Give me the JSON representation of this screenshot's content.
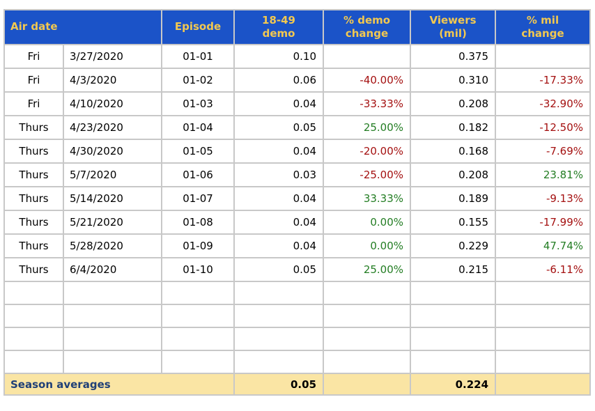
{
  "colors": {
    "header_bg": "#1B53C8",
    "header_text": "#F2C850",
    "grid": "#C8C8C8",
    "negative": "#A41010",
    "positive": "#237D23",
    "summary_bg": "#FAE5A4",
    "summary_text": "#1F3F77"
  },
  "table": {
    "headers": {
      "air_date": "Air date",
      "episode": "Episode",
      "demo": "18-49\ndemo",
      "demo_change": "% demo\nchange",
      "viewers": "Viewers\n(mil)",
      "mil_change": "% mil\nchange"
    },
    "rows": [
      {
        "day": "Fri",
        "date": "3/27/2020",
        "episode": "01-01",
        "demo": "0.10",
        "demo_change": "",
        "viewers": "0.375",
        "mil_change": ""
      },
      {
        "day": "Fri",
        "date": "4/3/2020",
        "episode": "01-02",
        "demo": "0.06",
        "demo_change": "-40.00%",
        "viewers": "0.310",
        "mil_change": "-17.33%"
      },
      {
        "day": "Fri",
        "date": "4/10/2020",
        "episode": "01-03",
        "demo": "0.04",
        "demo_change": "-33.33%",
        "viewers": "0.208",
        "mil_change": "-32.90%"
      },
      {
        "day": "Thurs",
        "date": "4/23/2020",
        "episode": "01-04",
        "demo": "0.05",
        "demo_change": "25.00%",
        "viewers": "0.182",
        "mil_change": "-12.50%"
      },
      {
        "day": "Thurs",
        "date": "4/30/2020",
        "episode": "01-05",
        "demo": "0.04",
        "demo_change": "-20.00%",
        "viewers": "0.168",
        "mil_change": "-7.69%"
      },
      {
        "day": "Thurs",
        "date": "5/7/2020",
        "episode": "01-06",
        "demo": "0.03",
        "demo_change": "-25.00%",
        "viewers": "0.208",
        "mil_change": "23.81%"
      },
      {
        "day": "Thurs",
        "date": "5/14/2020",
        "episode": "01-07",
        "demo": "0.04",
        "demo_change": "33.33%",
        "viewers": "0.189",
        "mil_change": "-9.13%"
      },
      {
        "day": "Thurs",
        "date": "5/21/2020",
        "episode": "01-08",
        "demo": "0.04",
        "demo_change": "0.00%",
        "viewers": "0.155",
        "mil_change": "-17.99%"
      },
      {
        "day": "Thurs",
        "date": "5/28/2020",
        "episode": "01-09",
        "demo": "0.04",
        "demo_change": "0.00%",
        "viewers": "0.229",
        "mil_change": "47.74%"
      },
      {
        "day": "Thurs",
        "date": "6/4/2020",
        "episode": "01-10",
        "demo": "0.05",
        "demo_change": "25.00%",
        "viewers": "0.215",
        "mil_change": "-6.11%"
      }
    ],
    "empty_row_count": 4,
    "summary": {
      "label": "Season averages",
      "demo": "0.05",
      "viewers": "0.224"
    }
  }
}
